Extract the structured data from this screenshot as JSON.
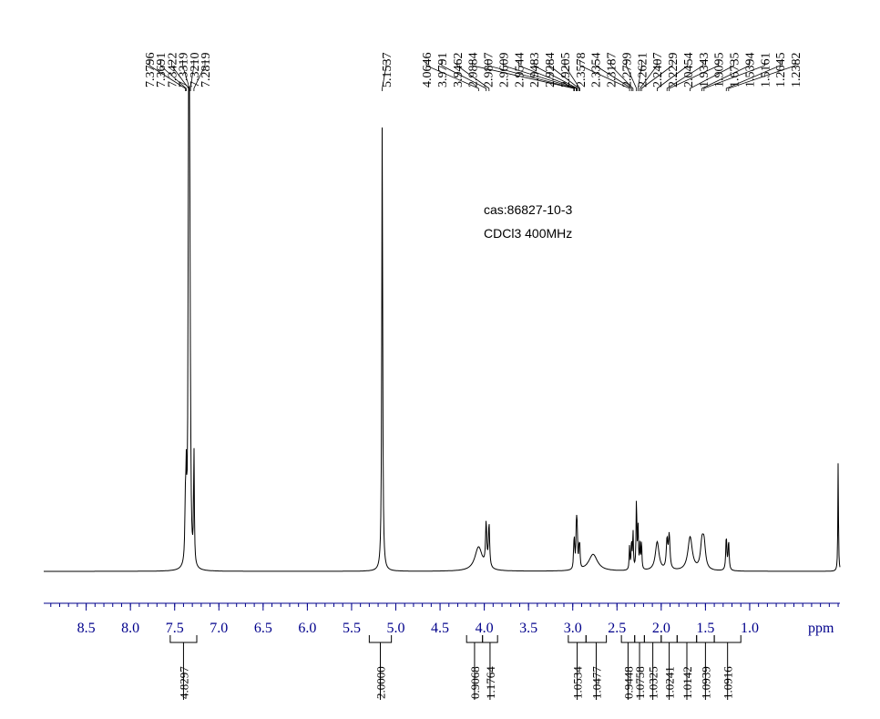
{
  "colors": {
    "spectrum": "#000000",
    "axis": "#00008b",
    "text": "#000000"
  },
  "annotations": [
    "cas:86827-10-3",
    "CDCl3 400MHz"
  ],
  "peak_labels": [
    "7.3796",
    "7.3691",
    "7.3422",
    "7.3319",
    "7.3210",
    "7.2819",
    "5.1537",
    "4.0646",
    "3.9791",
    "3.9462",
    "2.9884",
    "2.9807",
    "2.9609",
    "2.9544",
    "2.9483",
    "2.9284",
    "2.9205",
    "2.3578",
    "2.3354",
    "2.3187",
    "2.2799",
    "2.2621",
    "2.2407",
    "2.2229",
    "2.0454",
    "1.9343",
    "1.9095",
    "1.6735",
    "1.5394",
    "1.5161",
    "1.2645",
    "1.2382"
  ],
  "axis": {
    "unit": "ppm",
    "tick_labels": [
      "8.5",
      "8.0",
      "7.5",
      "7.0",
      "6.5",
      "6.0",
      "5.5",
      "5.0",
      "4.5",
      "4.0",
      "3.5",
      "3.0",
      "2.5",
      "2.0",
      "1.5",
      "1.0"
    ]
  },
  "chart_data": {
    "type": "line",
    "title": "",
    "xlabel": "ppm",
    "ylabel": "",
    "xlim": [
      8.98,
      -0.02
    ],
    "x_reversed": true,
    "major_ticks": [
      8.5,
      8.0,
      7.5,
      7.0,
      6.5,
      6.0,
      5.5,
      5.0,
      4.5,
      4.0,
      3.5,
      3.0,
      2.5,
      2.0,
      1.5,
      1.0
    ],
    "minor_tick_step": 0.1,
    "grid": false,
    "peaks": [
      {
        "ppm": 7.3796,
        "height": 0.1,
        "width": 0.006
      },
      {
        "ppm": 7.3691,
        "height": 0.16,
        "width": 0.006
      },
      {
        "ppm": 7.3422,
        "height": 0.95,
        "width": 0.006
      },
      {
        "ppm": 7.3319,
        "height": 0.9,
        "width": 0.006
      },
      {
        "ppm": 7.321,
        "height": 0.14,
        "width": 0.006
      },
      {
        "ppm": 7.2819,
        "height": 0.24,
        "width": 0.005
      },
      {
        "ppm": 5.1537,
        "height": 0.94,
        "width": 0.006
      },
      {
        "ppm": 4.0646,
        "height": 0.05,
        "width": 0.05
      },
      {
        "ppm": 3.9791,
        "height": 0.09,
        "width": 0.008
      },
      {
        "ppm": 3.9462,
        "height": 0.09,
        "width": 0.008
      },
      {
        "ppm": 2.9884,
        "height": 0.04,
        "width": 0.005
      },
      {
        "ppm": 2.9807,
        "height": 0.05,
        "width": 0.005
      },
      {
        "ppm": 2.9609,
        "height": 0.06,
        "width": 0.005
      },
      {
        "ppm": 2.9544,
        "height": 0.07,
        "width": 0.005
      },
      {
        "ppm": 2.9483,
        "height": 0.05,
        "width": 0.005
      },
      {
        "ppm": 2.9284,
        "height": 0.04,
        "width": 0.005
      },
      {
        "ppm": 2.9205,
        "height": 0.04,
        "width": 0.005
      },
      {
        "ppm": 2.77,
        "height": 0.035,
        "width": 0.06
      },
      {
        "ppm": 2.3578,
        "height": 0.05,
        "width": 0.005
      },
      {
        "ppm": 2.3354,
        "height": 0.06,
        "width": 0.005
      },
      {
        "ppm": 2.3187,
        "height": 0.08,
        "width": 0.005
      },
      {
        "ppm": 2.2799,
        "height": 0.15,
        "width": 0.005
      },
      {
        "ppm": 2.2621,
        "height": 0.09,
        "width": 0.005
      },
      {
        "ppm": 2.2407,
        "height": 0.05,
        "width": 0.005
      },
      {
        "ppm": 2.2229,
        "height": 0.06,
        "width": 0.005
      },
      {
        "ppm": 2.0454,
        "height": 0.06,
        "width": 0.025
      },
      {
        "ppm": 1.9343,
        "height": 0.06,
        "width": 0.01
      },
      {
        "ppm": 1.9095,
        "height": 0.07,
        "width": 0.01
      },
      {
        "ppm": 1.6735,
        "height": 0.07,
        "width": 0.03
      },
      {
        "ppm": 1.5394,
        "height": 0.05,
        "width": 0.02
      },
      {
        "ppm": 1.5161,
        "height": 0.05,
        "width": 0.02
      },
      {
        "ppm": 1.2645,
        "height": 0.07,
        "width": 0.007
      },
      {
        "ppm": 1.2382,
        "height": 0.06,
        "width": 0.007
      },
      {
        "ppm": 0.0,
        "height": 0.23,
        "width": 0.004
      }
    ],
    "peak_group_brackets": [
      {
        "from_ppm": 7.3796,
        "to_ppm": 7.2819
      },
      {
        "from_ppm": 5.1537,
        "to_ppm": 5.1537
      },
      {
        "from_ppm": 4.0646,
        "to_ppm": 3.9462
      },
      {
        "from_ppm": 2.9884,
        "to_ppm": 2.9205
      },
      {
        "from_ppm": 2.3578,
        "to_ppm": 2.2229
      },
      {
        "from_ppm": 2.0454,
        "to_ppm": 1.9095
      },
      {
        "from_ppm": 1.6735,
        "to_ppm": 1.5161
      },
      {
        "from_ppm": 1.2645,
        "to_ppm": 1.2382
      }
    ],
    "integrals": [
      {
        "from": 7.55,
        "to": 7.25,
        "value": "4.8297"
      },
      {
        "from": 5.3,
        "to": 5.05,
        "value": "2.0000"
      },
      {
        "from": 4.2,
        "to": 4.02,
        "value": "0.9068"
      },
      {
        "from": 4.02,
        "to": 3.85,
        "value": "1.1764"
      },
      {
        "from": 3.05,
        "to": 2.85,
        "value": "1.0534"
      },
      {
        "from": 2.85,
        "to": 2.62,
        "value": "1.0477"
      },
      {
        "from": 2.45,
        "to": 2.3,
        "value": "0.9448"
      },
      {
        "from": 2.3,
        "to": 2.19,
        "value": "1.0758"
      },
      {
        "from": 2.19,
        "to": 2.0,
        "value": "1.0325"
      },
      {
        "from": 2.0,
        "to": 1.82,
        "value": "1.0241"
      },
      {
        "from": 1.82,
        "to": 1.6,
        "value": "1.0142"
      },
      {
        "from": 1.6,
        "to": 1.4,
        "value": "1.0939"
      },
      {
        "from": 1.4,
        "to": 1.1,
        "value": "1.0916"
      }
    ]
  }
}
